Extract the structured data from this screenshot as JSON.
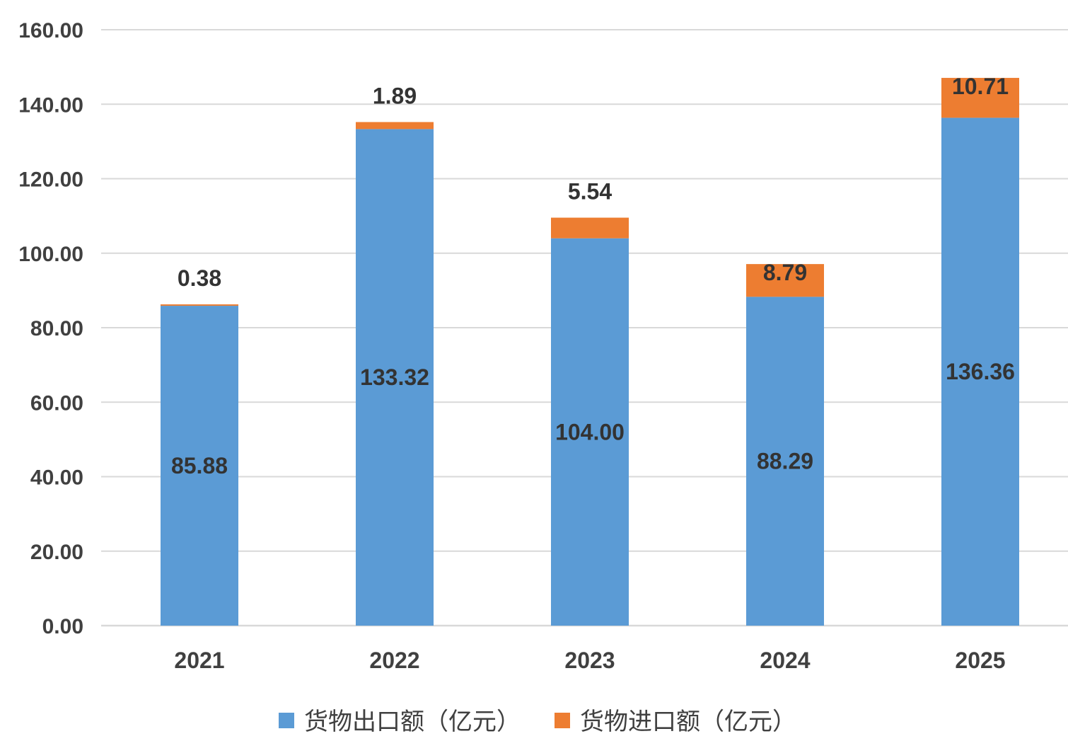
{
  "chart_data": {
    "type": "bar",
    "stacked": true,
    "categories": [
      "2021",
      "2022",
      "2023",
      "2024",
      "2025"
    ],
    "series": [
      {
        "name": "货物出口额（亿元）",
        "values": [
          85.88,
          133.32,
          104.0,
          88.29,
          136.36
        ],
        "color": "#5B9BD5",
        "labels": [
          "85.88",
          "133.32",
          "104.00",
          "88.29",
          "136.36"
        ]
      },
      {
        "name": "货物进口额（亿元）",
        "values": [
          0.38,
          1.89,
          5.54,
          8.79,
          10.71
        ],
        "color": "#ED7D31",
        "labels": [
          "0.38",
          "1.89",
          "5.54",
          "8.79",
          "10.71"
        ]
      }
    ],
    "ylim": [
      0,
      160
    ],
    "yticks": [
      "0.00",
      "20.00",
      "40.00",
      "60.00",
      "80.00",
      "100.00",
      "120.00",
      "140.00",
      "160.00"
    ],
    "title": "",
    "xlabel": "",
    "ylabel": "",
    "grid": true,
    "gridColor": "#D9D9D9",
    "legend": "bottom"
  }
}
